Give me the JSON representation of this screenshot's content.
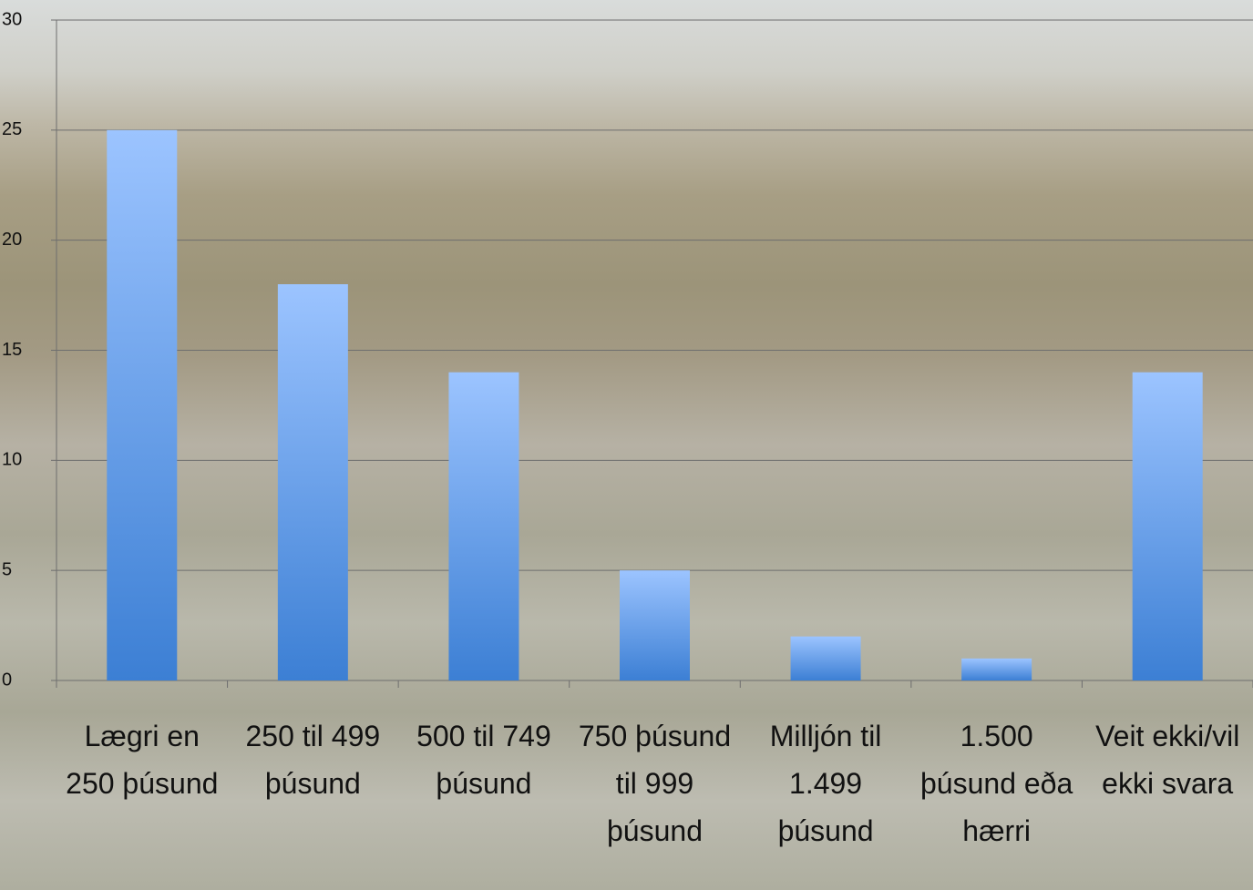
{
  "chart_data": {
    "type": "bar",
    "categories": [
      "Lægri en 250 þúsund",
      "250 til 499 þúsund",
      "500 til 749 þúsund",
      "750 þúsund til 999 þúsund",
      "Milljón til 1.499 þúsund",
      "1.500 þúsund eða hærri",
      "Veit ekki/vil ekki svara"
    ],
    "values": [
      25,
      18,
      14,
      5,
      2,
      1,
      14
    ],
    "color": "#5f9be8",
    "ylim": [
      0,
      30
    ],
    "yticks": [
      0,
      5,
      10,
      15,
      20,
      25,
      30
    ],
    "grid": true
  }
}
